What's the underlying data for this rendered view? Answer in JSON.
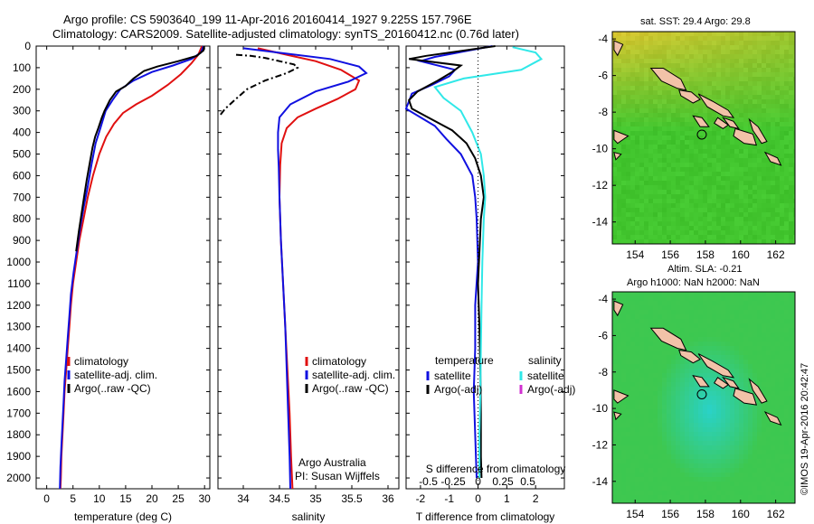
{
  "header": {
    "line1": "Argo profile: CS 5903640_199 11-Apr-2016 20160414_1927 9.225S 157.796E",
    "line2": "Climatology: CARS2009. Satellite-adjusted climatology: synTS_20160412.nc (0.76d later)"
  },
  "colors": {
    "climatology": "#e01010",
    "satellite": "#1010e0",
    "argo": "#000000",
    "sat_salinity": "#30e8e8",
    "argo_adj_salinity": "#d030d0"
  },
  "watermark": "©IMOS 19-Apr-2016 20:42:47",
  "chart_data": [
    {
      "id": "temperature",
      "type": "line",
      "xlabel": "temperature (deg C)",
      "xlim": [
        -2,
        31
      ],
      "ylim": [
        2050,
        0
      ],
      "xticks": [
        "0",
        "5",
        "10",
        "15",
        "20",
        "25",
        "30"
      ],
      "yticks": [
        "0",
        "100",
        "200",
        "300",
        "400",
        "500",
        "600",
        "700",
        "800",
        "900",
        "1000",
        "1100",
        "1200",
        "1300",
        "1400",
        "1500",
        "1600",
        "1700",
        "1800",
        "1900",
        "2000"
      ],
      "legend": [
        "climatology",
        "satellite-adj. clim.",
        "Argo(..raw -QC)"
      ],
      "series": [
        {
          "name": "climatology",
          "points": [
            [
              29.5,
              0
            ],
            [
              28.8,
              40
            ],
            [
              27.5,
              80
            ],
            [
              25.5,
              130
            ],
            [
              23,
              180
            ],
            [
              20,
              230
            ],
            [
              17,
              270
            ],
            [
              14.5,
              310
            ],
            [
              12.8,
              360
            ],
            [
              11.3,
              420
            ],
            [
              10,
              500
            ],
            [
              8.8,
              600
            ],
            [
              7.8,
              700
            ],
            [
              7,
              800
            ],
            [
              6.2,
              900
            ],
            [
              5.6,
              1000
            ],
            [
              5,
              1100
            ],
            [
              4.6,
              1200
            ],
            [
              4.3,
              1300
            ],
            [
              4,
              1400
            ],
            [
              3.7,
              1500
            ],
            [
              3.4,
              1600
            ],
            [
              3.2,
              1700
            ],
            [
              3,
              1800
            ],
            [
              2.8,
              1900
            ],
            [
              2.7,
              2000
            ],
            [
              2.6,
              2050
            ]
          ]
        },
        {
          "name": "satellite-adj. clim.",
          "points": [
            [
              29.8,
              0
            ],
            [
              29.3,
              30
            ],
            [
              27.5,
              60
            ],
            [
              24,
              90
            ],
            [
              20,
              120
            ],
            [
              16.5,
              160
            ],
            [
              14,
              200
            ],
            [
              12.5,
              250
            ],
            [
              11.2,
              300
            ],
            [
              10.2,
              380
            ],
            [
              9.3,
              450
            ],
            [
              8.5,
              550
            ],
            [
              7.8,
              650
            ],
            [
              7,
              750
            ],
            [
              6.3,
              850
            ],
            [
              5.7,
              950
            ],
            [
              5.1,
              1050
            ],
            [
              4.6,
              1150
            ],
            [
              4.3,
              1250
            ],
            [
              4,
              1350
            ],
            [
              3.7,
              1450
            ],
            [
              3.4,
              1550
            ],
            [
              3.2,
              1650
            ],
            [
              3,
              1750
            ],
            [
              2.8,
              1850
            ],
            [
              2.6,
              1950
            ],
            [
              2.5,
              2050
            ]
          ]
        },
        {
          "name": "Argo(..raw -QC)",
          "points": [
            [
              29.9,
              0
            ],
            [
              29.8,
              20
            ],
            [
              28.5,
              45
            ],
            [
              25,
              70
            ],
            [
              21,
              95
            ],
            [
              18.5,
              115
            ],
            [
              16.5,
              150
            ],
            [
              15,
              185
            ],
            [
              13.2,
              210
            ],
            [
              12,
              250
            ],
            [
              11,
              300
            ],
            [
              10.5,
              330
            ],
            [
              9.8,
              380
            ],
            [
              9.2,
              420
            ],
            [
              8.7,
              470
            ],
            [
              8.2,
              540
            ],
            [
              7.6,
              620
            ],
            [
              7.1,
              700
            ],
            [
              6.6,
              780
            ],
            [
              6.1,
              860
            ],
            [
              5.6,
              950
            ]
          ]
        }
      ]
    },
    {
      "id": "salinity",
      "type": "line",
      "xlabel": "salinity",
      "xlim": [
        33.65,
        36.15
      ],
      "ylim": [
        2050,
        0
      ],
      "xticks": [
        "34",
        "34.5",
        "35",
        "35.5",
        "36"
      ],
      "legend": [
        "climatology",
        "satellite-adj. clim.",
        "Argo(..raw -QC)"
      ],
      "annotation": [
        "Argo Australia",
        "PI: Susan Wijffels"
      ],
      "series": [
        {
          "name": "climatology",
          "points": [
            [
              34.2,
              10
            ],
            [
              34.6,
              40
            ],
            [
              35.0,
              70
            ],
            [
              35.35,
              110
            ],
            [
              35.6,
              160
            ],
            [
              35.55,
              200
            ],
            [
              35.3,
              245
            ],
            [
              35.0,
              290
            ],
            [
              34.75,
              330
            ],
            [
              34.6,
              380
            ],
            [
              34.53,
              450
            ],
            [
              34.51,
              550
            ],
            [
              34.5,
              700
            ],
            [
              34.52,
              900
            ],
            [
              34.55,
              1100
            ],
            [
              34.58,
              1300
            ],
            [
              34.61,
              1500
            ],
            [
              34.64,
              1700
            ],
            [
              34.66,
              1900
            ],
            [
              34.68,
              2050
            ]
          ]
        },
        {
          "name": "satellite-adj. clim.",
          "points": [
            [
              34.0,
              10
            ],
            [
              34.6,
              35
            ],
            [
              35.2,
              60
            ],
            [
              35.6,
              95
            ],
            [
              35.7,
              125
            ],
            [
              35.45,
              165
            ],
            [
              35.0,
              210
            ],
            [
              34.65,
              270
            ],
            [
              34.5,
              330
            ],
            [
              34.48,
              400
            ],
            [
              34.48,
              480
            ],
            [
              34.49,
              560
            ],
            [
              34.5,
              700
            ],
            [
              34.52,
              900
            ],
            [
              34.55,
              1100
            ],
            [
              34.58,
              1300
            ],
            [
              34.6,
              1500
            ],
            [
              34.62,
              1700
            ],
            [
              34.64,
              1900
            ],
            [
              34.65,
              2050
            ]
          ]
        },
        {
          "name": "Argo(..raw -QC)",
          "points": [
            [
              33.9,
              40
            ],
            [
              34.1,
              45
            ],
            [
              34.3,
              55
            ],
            [
              34.5,
              70
            ],
            [
              34.7,
              85
            ],
            [
              34.75,
              100
            ],
            [
              34.6,
              125
            ],
            [
              34.3,
              160
            ],
            [
              34.05,
              200
            ],
            [
              33.88,
              250
            ],
            [
              33.75,
              290
            ],
            [
              33.68,
              320
            ]
          ]
        }
      ]
    },
    {
      "id": "difference",
      "type": "line",
      "xlabel": "T difference from climatology",
      "secondary_xlabel": "S difference from climatology",
      "xlim": [
        -2.5,
        3
      ],
      "ylim": [
        2050,
        0
      ],
      "xticks": [
        "-2",
        "-1",
        "0",
        "1",
        "2"
      ],
      "secondary_xticks": [
        "-0.5",
        "-0.25",
        "0",
        "0.25",
        "0.5"
      ],
      "legend": [
        "temperature",
        "satellite",
        "Argo(-adj)",
        "salinity",
        "satellite",
        "Argo(-adj)"
      ],
      "series": [
        {
          "name": "satellite",
          "points": [
            [
              0.5,
              0
            ],
            [
              -1.5,
              50
            ],
            [
              -2.0,
              70
            ],
            [
              -0.8,
              110
            ],
            [
              -1.0,
              140
            ],
            [
              -1.6,
              180
            ],
            [
              -2.3,
              220
            ],
            [
              -2.5,
              290
            ],
            [
              -2.0,
              330
            ],
            [
              -1.5,
              370
            ],
            [
              -1.1,
              430
            ],
            [
              -0.6,
              500
            ],
            [
              -0.2,
              600
            ],
            [
              -0.1,
              700
            ],
            [
              -0.05,
              800
            ],
            [
              0.0,
              1000
            ],
            [
              -0.1,
              1200
            ],
            [
              -0.1,
              1400
            ],
            [
              -0.15,
              1600
            ],
            [
              -0.1,
              1800
            ],
            [
              -0.05,
              2000
            ]
          ]
        },
        {
          "name": "Argo(-adj)",
          "points": [
            [
              0.6,
              0
            ],
            [
              -1.8,
              45
            ],
            [
              -2.4,
              60
            ],
            [
              -0.6,
              90
            ],
            [
              -0.9,
              120
            ],
            [
              -1.4,
              160
            ],
            [
              -2.1,
              210
            ],
            [
              -2.4,
              250
            ],
            [
              -2.3,
              290
            ],
            [
              -1.6,
              340
            ],
            [
              -0.9,
              390
            ],
            [
              -0.4,
              450
            ],
            [
              -0.1,
              520
            ],
            [
              0.1,
              600
            ],
            [
              0.2,
              700
            ],
            [
              0.1,
              800
            ],
            [
              0.05,
              950
            ],
            [
              0.0,
              1100
            ],
            [
              0.05,
              1300
            ],
            [
              0.08,
              1500
            ],
            [
              0.1,
              1700
            ],
            [
              0.1,
              1900
            ],
            [
              0.12,
              2000
            ]
          ]
        },
        {
          "name": "salinity satellite",
          "points": [
            [
              1.2,
              5
            ],
            [
              2.0,
              30
            ],
            [
              2.2,
              60
            ],
            [
              1.5,
              110
            ],
            [
              -0.5,
              150
            ],
            [
              -1.5,
              190
            ],
            [
              -1.2,
              240
            ],
            [
              -0.6,
              300
            ],
            [
              -0.2,
              400
            ],
            [
              0.1,
              500
            ],
            [
              0.2,
              600
            ],
            [
              0.25,
              700
            ],
            [
              0.2,
              800
            ],
            [
              0.15,
              1000
            ],
            [
              0.12,
              1200
            ],
            [
              0.1,
              1400
            ],
            [
              0.08,
              1600
            ],
            [
              0.05,
              1800
            ],
            [
              0.05,
              2000
            ]
          ]
        }
      ]
    },
    {
      "id": "sst_map",
      "type": "heatmap",
      "title": "sat. SST: 29.4  Argo: 29.8",
      "xlim": [
        152.7,
        163.1
      ],
      "ylim": [
        -15.2,
        -3.6
      ],
      "xticks": [
        "154",
        "156",
        "158",
        "160",
        "162"
      ],
      "yticks": [
        "-4",
        "-6",
        "-8",
        "-10",
        "-12",
        "-14"
      ],
      "marker": [
        157.796,
        -9.225
      ]
    },
    {
      "id": "sla_map",
      "type": "heatmap",
      "title": "Altim. SLA: -0.21",
      "subtitle": "Argo h1000: NaN h2000: NaN",
      "xlim": [
        152.7,
        163.1
      ],
      "ylim": [
        -15.2,
        -3.6
      ],
      "xticks": [
        "154",
        "156",
        "158",
        "160",
        "162"
      ],
      "yticks": [
        "-4",
        "-6",
        "-8",
        "-10",
        "-12",
        "-14"
      ],
      "marker": [
        157.796,
        -9.225
      ]
    }
  ]
}
